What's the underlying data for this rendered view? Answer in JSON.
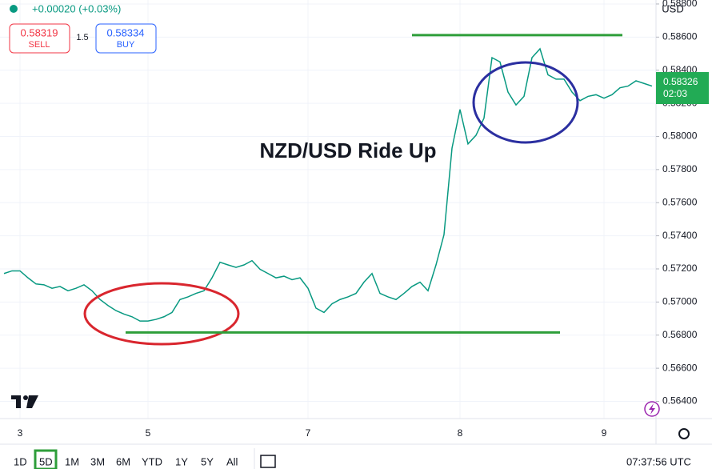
{
  "chart_data": {
    "type": "line",
    "title": "NZD/USD Ride Up",
    "currency": "USD",
    "categories": [
      null,
      null,
      "3",
      null,
      null,
      null,
      null,
      null,
      null,
      null,
      null,
      null,
      null,
      null,
      null,
      null,
      null,
      null,
      "5",
      null,
      null,
      null,
      null,
      null,
      null,
      null,
      null,
      null,
      null,
      null,
      null,
      null,
      null,
      null,
      null,
      null,
      null,
      null,
      "7",
      null,
      null,
      null,
      null,
      null,
      null,
      null,
      null,
      null,
      null,
      null,
      null,
      null,
      null,
      null,
      null,
      null,
      null,
      "8",
      null,
      null,
      null,
      null,
      null,
      null,
      null,
      null,
      null,
      null,
      null,
      null,
      null,
      null,
      null,
      null,
      null,
      "9",
      null,
      null,
      null,
      null,
      null,
      null
    ],
    "values": [
      0.57172,
      0.57188,
      0.57188,
      0.57146,
      0.57109,
      0.57104,
      0.57083,
      0.57094,
      0.57068,
      0.57083,
      0.57104,
      0.57068,
      0.57015,
      0.56979,
      0.56948,
      0.56927,
      0.56911,
      0.56885,
      0.56885,
      0.56895,
      0.56911,
      0.56937,
      0.57015,
      0.57031,
      0.57052,
      0.57068,
      0.57146,
      0.5724,
      0.57224,
      0.57209,
      0.57224,
      0.5725,
      0.57198,
      0.57172,
      0.57146,
      0.57156,
      0.57135,
      0.57146,
      0.57083,
      0.56963,
      0.56937,
      0.56989,
      0.57015,
      0.57031,
      0.57052,
      0.5712,
      0.57172,
      0.57052,
      0.57031,
      0.57015,
      0.57052,
      0.57094,
      0.5712,
      0.57068,
      0.57224,
      0.57407,
      0.57929,
      0.58163,
      0.57955,
      0.58007,
      0.58111,
      0.58476,
      0.5845,
      0.58268,
      0.5819,
      0.58242,
      0.58476,
      0.58529,
      0.58372,
      0.58346,
      0.58346,
      0.58268,
      0.58216,
      0.58242,
      0.58252,
      0.58231,
      0.58252,
      0.58294,
      0.58304,
      0.58336,
      0.5832,
      0.58304
    ],
    "color": "#089981",
    "ylim": [
      0.56296,
      0.58824
    ],
    "yticks": [
      {
        "value": 0.564,
        "label": "0.56400"
      },
      {
        "value": 0.566,
        "label": "0.56600"
      },
      {
        "value": 0.568,
        "label": "0.56800"
      },
      {
        "value": 0.57,
        "label": "0.57000"
      },
      {
        "value": 0.572,
        "label": "0.57200"
      },
      {
        "value": 0.574,
        "label": "0.57400"
      },
      {
        "value": 0.576,
        "label": "0.57600"
      },
      {
        "value": 0.578,
        "label": "0.57800"
      },
      {
        "value": 0.58,
        "label": "0.58000"
      },
      {
        "value": 0.582,
        "label": "0.58200"
      },
      {
        "value": 0.584,
        "label": "0.58400"
      },
      {
        "value": 0.586,
        "label": "0.58600"
      },
      {
        "value": 0.588,
        "label": "0.58800"
      }
    ],
    "grid": true,
    "levels": [
      {
        "value": 0.58612,
        "color": "#2e9e3a"
      },
      {
        "value": 0.56816,
        "color": "#2e9e3a"
      }
    ],
    "last_price": 0.58326,
    "last_price_color": "#22ab55",
    "countdown": "02:03"
  },
  "header": {
    "change": "+0.00020 (+0.03%)",
    "sell_price": "0.58319",
    "sell": "SELL",
    "spread": "1.5",
    "buy_price": "0.58334",
    "buy": "BUY"
  },
  "toolbar": {
    "ranges": [
      "1D",
      "5D",
      "1M",
      "3M",
      "6M",
      "YTD",
      "1Y",
      "5Y",
      "All"
    ],
    "time": "07:37:56 UTC"
  }
}
